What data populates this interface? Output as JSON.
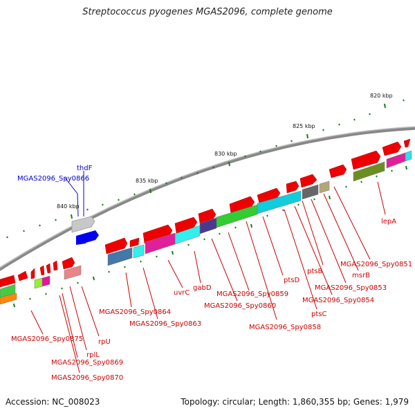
{
  "title": "Streptococcus pyogenes MGAS2096, complete genome",
  "footer": {
    "accession": "Accession: NC_008023",
    "summary": "Topology: circular; Length: 1,860,355 bp; Genes: 1,979"
  },
  "colors": {
    "backbone": "#888888",
    "tick": "#1a7a1a",
    "label_forward": "#cc0000",
    "label_reverse": "#0000cc"
  },
  "scale_labels": [
    "820 kbp",
    "825 kbp",
    "830 kbp",
    "835 kbp",
    "840 kbp"
  ],
  "gene_labels": [
    "MGAS2096_Spy0866",
    "thdF",
    "lepA",
    "MGAS2096_Spy0851",
    "msrB",
    "MGAS2096_Spy0853",
    "ptsB",
    "MGAS2096_Spy0854",
    "ptsC",
    "ptsD",
    "MGAS2096_Spy0858",
    "MGAS2096_Spy0859",
    "MGAS2096_Spy0860",
    "gabD",
    "uvrC",
    "MGAS2096_Spy0863",
    "MGAS2096_Spy0864",
    "MGAS2096_Spy0875",
    "rplL",
    "rpU",
    "MGAS2096_Spy0869",
    "MGAS2096_Spy0870"
  ]
}
